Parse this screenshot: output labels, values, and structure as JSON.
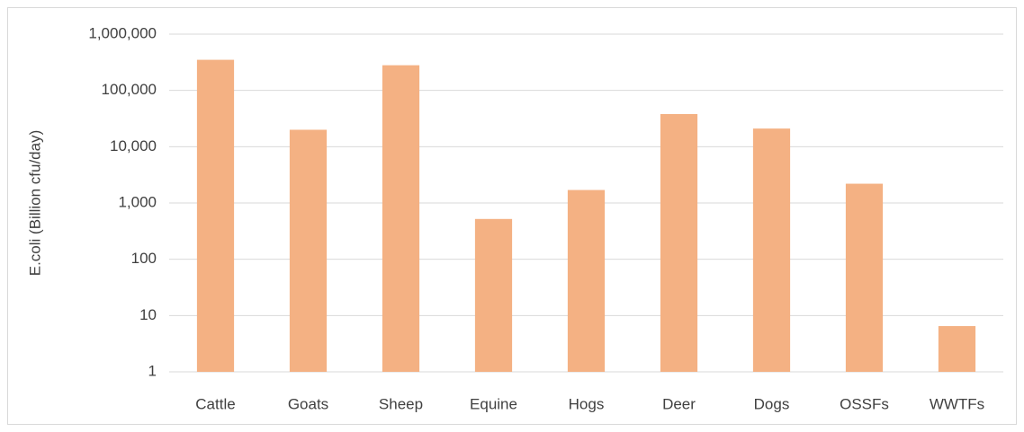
{
  "chart_data": {
    "type": "bar",
    "y_label": "E.coli (Billion cfu/day)",
    "categories": [
      "Cattle",
      "Goats",
      "Sheep",
      "Equine",
      "Hogs",
      "Deer",
      "Dogs",
      "OSSFs",
      "WWTFs"
    ],
    "values": [
      350000,
      20000,
      280000,
      520,
      1700,
      38000,
      21000,
      2200,
      6.5
    ],
    "color": "#f4b183",
    "log_scale": true,
    "ylim": [
      1,
      1000000
    ],
    "yticks": [
      1,
      10,
      100,
      {
        "value": 1000,
        "label": "1,000"
      },
      {
        "value": 10000,
        "label": "10,000"
      },
      {
        "value": 100000,
        "label": "100,000"
      },
      {
        "value": 1000000,
        "label": "1,000,000"
      }
    ],
    "grid": true
  }
}
